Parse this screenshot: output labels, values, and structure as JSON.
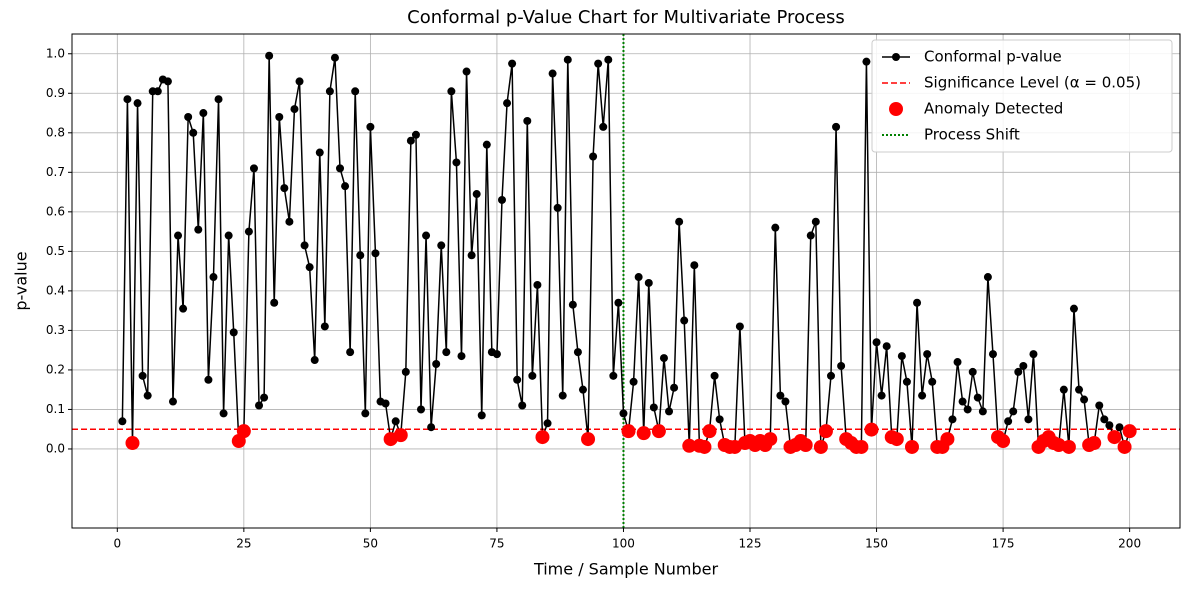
{
  "chart_data": {
    "type": "line",
    "title": "Conformal p-Value Chart for Multivariate Process",
    "xlabel": "Time / Sample Number",
    "ylabel": "p-value",
    "x": [
      1,
      2,
      3,
      4,
      5,
      6,
      7,
      8,
      9,
      10,
      11,
      12,
      13,
      14,
      15,
      16,
      17,
      18,
      19,
      20,
      21,
      22,
      23,
      24,
      25,
      26,
      27,
      28,
      29,
      30,
      31,
      32,
      33,
      34,
      35,
      36,
      37,
      38,
      39,
      40,
      41,
      42,
      43,
      44,
      45,
      46,
      47,
      48,
      49,
      50,
      51,
      52,
      53,
      54,
      55,
      56,
      57,
      58,
      59,
      60,
      61,
      62,
      63,
      64,
      65,
      66,
      67,
      68,
      69,
      70,
      71,
      72,
      73,
      74,
      75,
      76,
      77,
      78,
      79,
      80,
      81,
      82,
      83,
      84,
      85,
      86,
      87,
      88,
      89,
      90,
      91,
      92,
      93,
      94,
      95,
      96,
      97,
      98,
      99,
      100,
      101,
      102,
      103,
      104,
      105,
      106,
      107,
      108,
      109,
      110,
      111,
      112,
      113,
      114,
      115,
      116,
      117,
      118,
      119,
      120,
      121,
      122,
      123,
      124,
      125,
      126,
      127,
      128,
      129,
      130,
      131,
      132,
      133,
      134,
      135,
      136,
      137,
      138,
      139,
      140,
      141,
      142,
      143,
      144,
      145,
      146,
      147,
      148,
      149,
      150,
      151,
      152,
      153,
      154,
      155,
      156,
      157,
      158,
      159,
      160,
      161,
      162,
      163,
      164,
      165,
      166,
      167,
      168,
      169,
      170,
      171,
      172,
      173,
      174,
      175,
      176,
      177,
      178,
      179,
      180,
      181,
      182,
      183,
      184,
      185,
      186,
      187,
      188,
      189,
      190,
      191,
      192,
      193,
      194,
      195,
      196,
      197,
      198,
      199,
      200
    ],
    "series": [
      {
        "name": "Conformal p-value",
        "color": "#000000",
        "values": [
          0.07,
          0.885,
          0.015,
          0.875,
          0.185,
          0.135,
          0.905,
          0.905,
          0.935,
          0.93,
          0.12,
          0.54,
          0.355,
          0.84,
          0.8,
          0.555,
          0.85,
          0.175,
          0.435,
          0.885,
          0.09,
          0.54,
          0.295,
          0.02,
          0.045,
          0.55,
          0.71,
          0.11,
          0.13,
          0.995,
          0.37,
          0.84,
          0.66,
          0.575,
          0.86,
          0.93,
          0.515,
          0.46,
          0.225,
          0.75,
          0.31,
          0.905,
          0.99,
          0.71,
          0.665,
          0.245,
          0.905,
          0.49,
          0.09,
          0.815,
          0.495,
          0.12,
          0.115,
          0.025,
          0.07,
          0.035,
          0.195,
          0.78,
          0.795,
          0.1,
          0.54,
          0.055,
          0.215,
          0.515,
          0.245,
          0.905,
          0.725,
          0.235,
          0.955,
          0.49,
          0.645,
          0.085,
          0.77,
          0.245,
          0.24,
          0.63,
          0.875,
          0.975,
          0.175,
          0.11,
          0.83,
          0.185,
          0.415,
          0.03,
          0.065,
          0.95,
          0.61,
          0.135,
          0.985,
          0.365,
          0.245,
          0.15,
          0.025,
          0.74,
          0.975,
          0.815,
          0.985,
          0.185,
          0.37,
          0.09,
          0.045,
          0.17,
          0.435,
          0.04,
          0.42,
          0.105,
          0.045,
          0.23,
          0.095,
          0.155,
          0.575,
          0.325,
          0.008,
          0.465,
          0.008,
          0.005,
          0.045,
          0.185,
          0.075,
          0.01,
          0.005,
          0.005,
          0.31,
          0.015,
          0.02,
          0.01,
          0.02,
          0.01,
          0.025,
          0.56,
          0.135,
          0.12,
          0.005,
          0.01,
          0.02,
          0.01,
          0.54,
          0.575,
          0.005,
          0.045,
          0.185,
          0.815,
          0.21,
          0.025,
          0.015,
          0.005,
          0.005,
          0.98,
          0.049,
          0.27,
          0.135,
          0.26,
          0.03,
          0.025,
          0.235,
          0.17,
          0.005,
          0.37,
          0.135,
          0.24,
          0.17,
          0.005,
          0.005,
          0.025,
          0.075,
          0.22,
          0.12,
          0.1,
          0.195,
          0.13,
          0.095,
          0.435,
          0.24,
          0.03,
          0.02,
          0.07,
          0.095,
          0.195,
          0.21,
          0.075,
          0.24,
          0.005,
          0.02,
          0.03,
          0.015,
          0.01,
          0.15,
          0.005,
          0.355,
          0.15,
          0.125,
          0.01,
          0.015,
          0.11,
          0.075,
          0.06,
          0.03,
          0.055,
          0.005,
          0.045
        ]
      }
    ],
    "threshold": {
      "name": "Significance Level (α = 0.05)",
      "value": 0.05,
      "color": "#ff0000"
    },
    "anomaly": {
      "name": "Anomaly Detected",
      "color": "#ff0000"
    },
    "shift": {
      "name": "Process Shift",
      "x": 100,
      "color": "#008000"
    },
    "xlim": [
      -8.95,
      209.95
    ],
    "ylim": [
      -0.2,
      1.05
    ],
    "xticks": [
      0,
      25,
      50,
      75,
      100,
      125,
      150,
      175,
      200
    ],
    "yticks": [
      {
        "value": 0,
        "label": "0.0"
      },
      0.1,
      0.2,
      0.3,
      0.4,
      0.5,
      0.6,
      0.7,
      0.8,
      0.9,
      {
        "value": 1,
        "label": "1.0"
      }
    ],
    "grid": true,
    "legend": "upper right"
  }
}
